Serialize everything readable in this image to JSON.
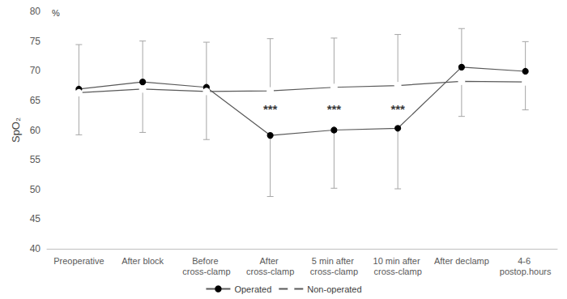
{
  "chart_data": {
    "type": "line",
    "ylabel": "SpO₂",
    "y_unit": "%",
    "categories": [
      "Preoperative",
      "After block",
      "Before cross-clamp",
      "After cross-clamp",
      "5 min after cross-clamp",
      "10 min after cross-clamp",
      "After declamp",
      "4-6 postop.hours"
    ],
    "series": [
      {
        "name": "Operated",
        "color": "#000000",
        "marker": "filled_circle",
        "values": [
          66.9,
          68.1,
          67.2,
          59.1,
          60.0,
          60.3,
          70.6,
          69.9
        ],
        "errors": [
          7.5,
          6.9,
          7.6,
          10.3,
          9.8,
          10.2,
          6.5,
          5.0
        ]
      },
      {
        "name": "Non-operated",
        "color": "#ffffff",
        "marker": "open_circle",
        "values": [
          66.3,
          66.9,
          66.5,
          66.6,
          67.2,
          67.5,
          68.2,
          68.1
        ],
        "errors": [
          7.1,
          7.3,
          8.1,
          8.8,
          8.3,
          8.6,
          5.9,
          4.7
        ]
      }
    ],
    "annotations": [
      {
        "category": "After cross-clamp",
        "y": 63.5,
        "text": "***"
      },
      {
        "category": "5 min after cross-clamp",
        "y": 63.5,
        "text": "***"
      },
      {
        "category": "10 min after cross-clamp",
        "y": 63.5,
        "text": "***"
      }
    ],
    "ylim": [
      40,
      80
    ],
    "yticks": [
      40,
      45,
      50,
      55,
      60,
      65,
      70,
      75,
      80
    ],
    "grid": false,
    "legend": "bottom"
  }
}
